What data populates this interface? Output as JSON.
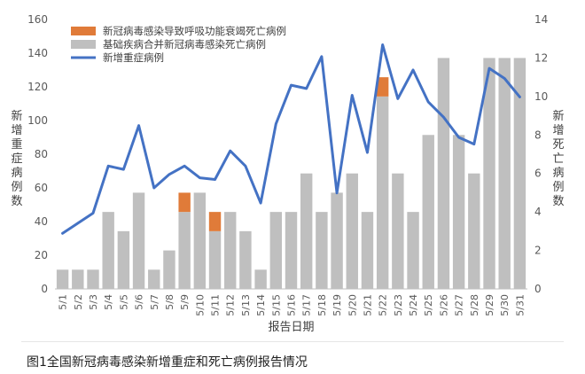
{
  "caption": "图1全国新冠病毒感染新增重症和死亡病例报告情况",
  "chart_data": {
    "type": "bar+line",
    "xlabel": "报告日期",
    "ylabel_left": "新增重症病例数",
    "ylabel_right": "新增死亡病例数",
    "ylim_left": [
      0,
      160
    ],
    "yticks_left": [
      0,
      20,
      40,
      60,
      80,
      100,
      120,
      140,
      160
    ],
    "ylim_right": [
      0,
      14
    ],
    "yticks_right": [
      0,
      2,
      4,
      6,
      8,
      10,
      12,
      14
    ],
    "categories": [
      "5/1",
      "5/2",
      "5/3",
      "5/4",
      "5/5",
      "5/6",
      "5/7",
      "5/8",
      "5/9",
      "5/10",
      "5/11",
      "5/12",
      "5/13",
      "5/14",
      "5/15",
      "5/16",
      "5/17",
      "5/18",
      "5/19",
      "5/20",
      "5/21",
      "5/22",
      "5/23",
      "5/24",
      "5/25",
      "5/26",
      "5/27",
      "5/28",
      "5/29",
      "5/30",
      "5/31"
    ],
    "legend": [
      "新冠病毒感染导致呼吸功能衰竭死亡病例",
      "基础疾病合并新冠病毒感染死亡病例",
      "新增重症病例"
    ],
    "series": [
      {
        "name": "新冠病毒感染导致呼吸功能衰竭死亡病例",
        "axis": "right",
        "kind": "bar",
        "color": "#e07b39",
        "values": [
          0,
          0,
          0,
          0,
          0,
          0,
          0,
          0,
          1,
          0,
          1,
          0,
          0,
          0,
          0,
          0,
          0,
          0,
          0,
          0,
          0,
          1,
          0,
          0,
          0,
          0,
          0,
          0,
          0,
          0,
          0
        ]
      },
      {
        "name": "基础疾病合并新冠病毒感染死亡病例",
        "axis": "right",
        "kind": "bar",
        "color": "#bfbfbf",
        "values": [
          1,
          1,
          1,
          4,
          3,
          5,
          1,
          2,
          4,
          5,
          3,
          4,
          3,
          1,
          4,
          4,
          6,
          4,
          5,
          6,
          4,
          10,
          6,
          4,
          8,
          12,
          8,
          6,
          12,
          12,
          12
        ]
      },
      {
        "name": "新增重症病例",
        "axis": "left",
        "kind": "line",
        "color": "#4472c4",
        "values": [
          33,
          39,
          45,
          73,
          71,
          97,
          60,
          68,
          73,
          66,
          65,
          82,
          73,
          51,
          98,
          121,
          119,
          138,
          57,
          115,
          81,
          145,
          113,
          130,
          111,
          102,
          90,
          86,
          131,
          125,
          114
        ]
      }
    ]
  }
}
